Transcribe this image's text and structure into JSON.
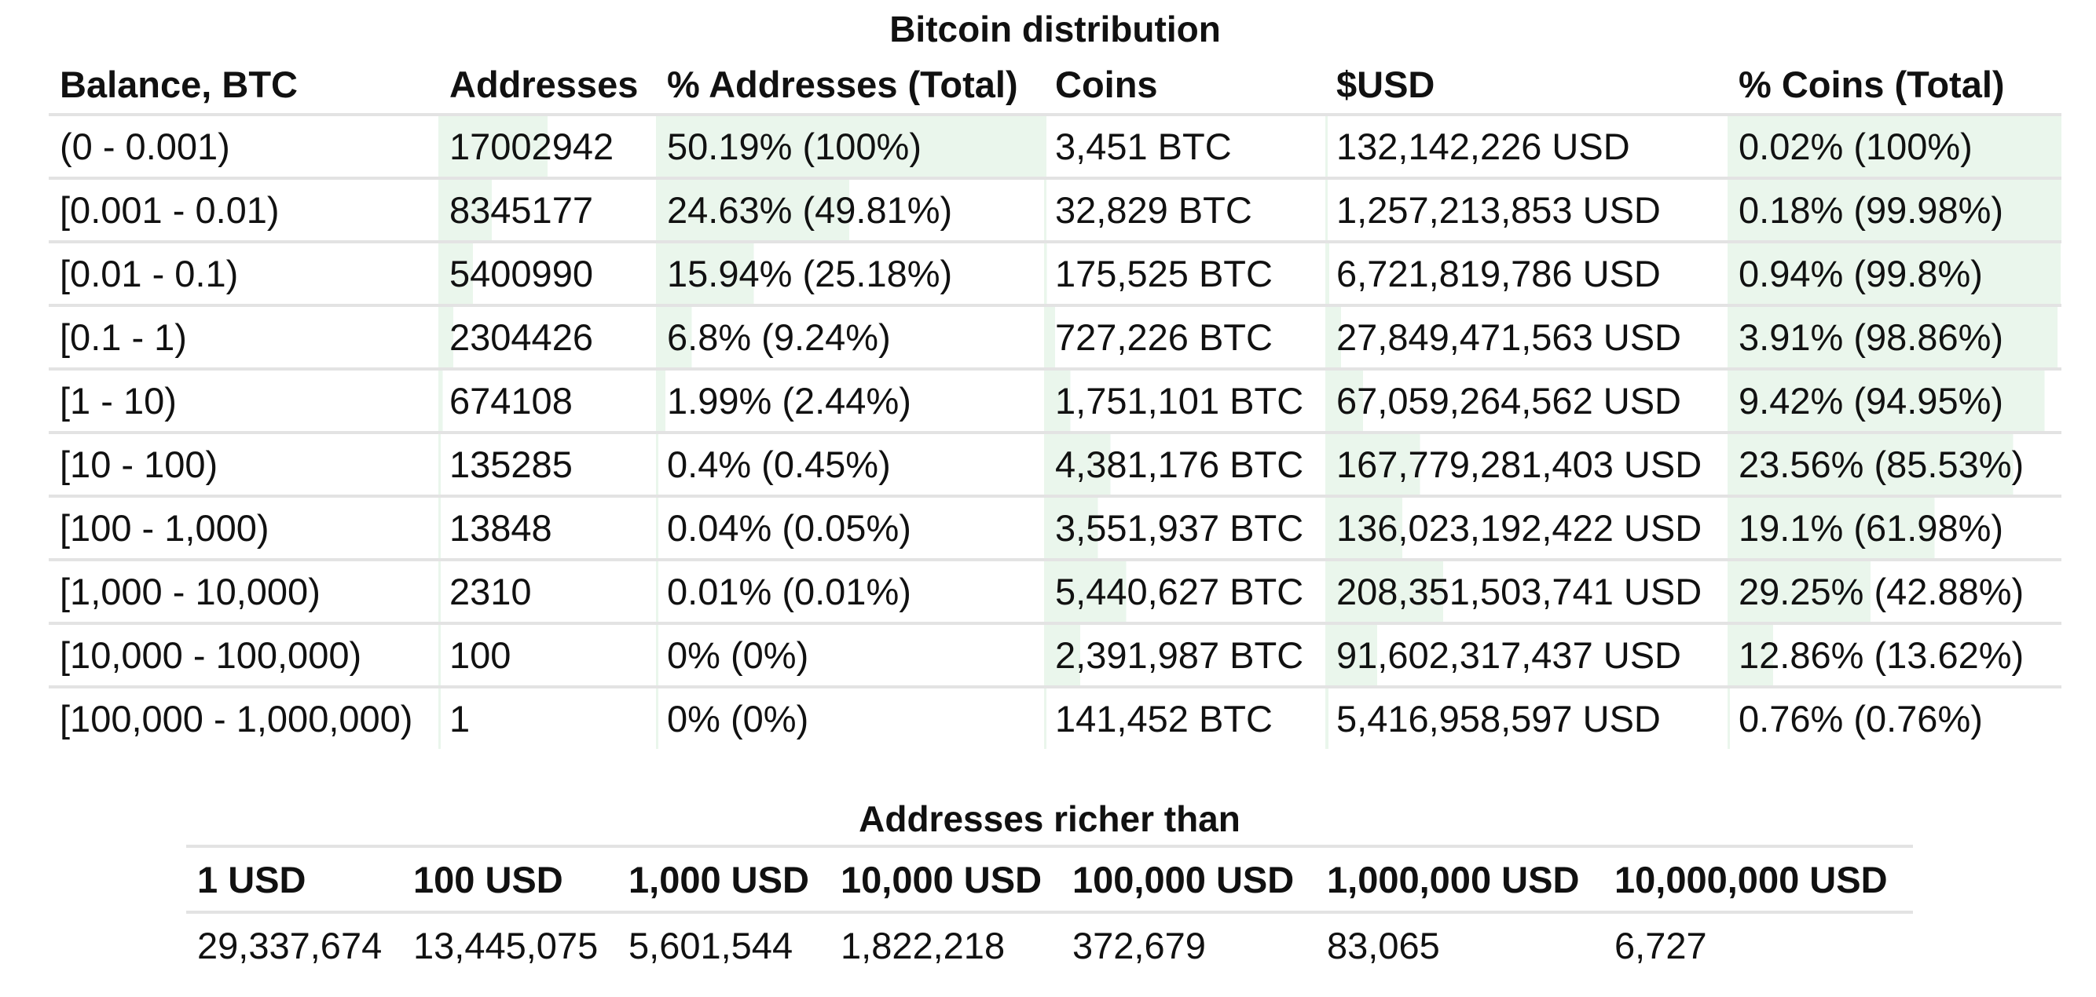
{
  "distribution": {
    "caption": "Bitcoin distribution",
    "headers": {
      "balance": "Balance, BTC",
      "addresses": "Addresses",
      "pct_addresses": "% Addresses (Total)",
      "coins": "Coins",
      "usd": "$USD",
      "pct_coins": "% Coins (Total)"
    },
    "rows": [
      {
        "balance": "(0 - 0.001)",
        "addresses": "17002942",
        "pct_addresses": "50.19% (100%)",
        "coins": "3,451 BTC",
        "usd": "132,142,226 USD",
        "pct_coins": "0.02% (100%)",
        "addresses_share": 0.5019,
        "pct_addresses_share": 1.0,
        "coins_share": 0.0002,
        "usd_share": 0.0002,
        "pct_coins_share": 1.0
      },
      {
        "balance": "[0.001 - 0.01)",
        "addresses": "8345177",
        "pct_addresses": "24.63% (49.81%)",
        "coins": "32,829 BTC",
        "usd": "1,257,213,853 USD",
        "pct_coins": "0.18% (99.98%)",
        "addresses_share": 0.2463,
        "pct_addresses_share": 0.4981,
        "coins_share": 0.0018,
        "usd_share": 0.0018,
        "pct_coins_share": 0.9998
      },
      {
        "balance": "[0.01 - 0.1)",
        "addresses": "5400990",
        "pct_addresses": "15.94% (25.18%)",
        "coins": "175,525 BTC",
        "usd": "6,721,819,786 USD",
        "pct_coins": "0.94% (99.8%)",
        "addresses_share": 0.1594,
        "pct_addresses_share": 0.2518,
        "coins_share": 0.0094,
        "usd_share": 0.0094,
        "pct_coins_share": 0.998
      },
      {
        "balance": "[0.1 - 1)",
        "addresses": "2304426",
        "pct_addresses": "6.8% (9.24%)",
        "coins": "727,226 BTC",
        "usd": "27,849,471,563 USD",
        "pct_coins": "3.91% (98.86%)",
        "addresses_share": 0.068,
        "pct_addresses_share": 0.0924,
        "coins_share": 0.0391,
        "usd_share": 0.0391,
        "pct_coins_share": 0.9886
      },
      {
        "balance": "[1 - 10)",
        "addresses": "674108",
        "pct_addresses": "1.99% (2.44%)",
        "coins": "1,751,101 BTC",
        "usd": "67,059,264,562 USD",
        "pct_coins": "9.42% (94.95%)",
        "addresses_share": 0.0199,
        "pct_addresses_share": 0.0244,
        "coins_share": 0.0942,
        "usd_share": 0.0942,
        "pct_coins_share": 0.9495
      },
      {
        "balance": "[10 - 100)",
        "addresses": "135285",
        "pct_addresses": "0.4% (0.45%)",
        "coins": "4,381,176 BTC",
        "usd": "167,779,281,403 USD",
        "pct_coins": "23.56% (85.53%)",
        "addresses_share": 0.004,
        "pct_addresses_share": 0.0045,
        "coins_share": 0.2356,
        "usd_share": 0.2356,
        "pct_coins_share": 0.8553
      },
      {
        "balance": "[100 - 1,000)",
        "addresses": "13848",
        "pct_addresses": "0.04% (0.05%)",
        "coins": "3,551,937 BTC",
        "usd": "136,023,192,422 USD",
        "pct_coins": "19.1% (61.98%)",
        "addresses_share": 0.0004,
        "pct_addresses_share": 0.0005,
        "coins_share": 0.191,
        "usd_share": 0.191,
        "pct_coins_share": 0.6198
      },
      {
        "balance": "[1,000 - 10,000)",
        "addresses": "2310",
        "pct_addresses": "0.01% (0.01%)",
        "coins": "5,440,627 BTC",
        "usd": "208,351,503,741 USD",
        "pct_coins": "29.25% (42.88%)",
        "addresses_share": 0.0001,
        "pct_addresses_share": 0.0001,
        "coins_share": 0.2925,
        "usd_share": 0.2925,
        "pct_coins_share": 0.4288
      },
      {
        "balance": "[10,000 - 100,000)",
        "addresses": "100",
        "pct_addresses": "0% (0%)",
        "coins": "2,391,987 BTC",
        "usd": "91,602,317,437 USD",
        "pct_coins": "12.86% (13.62%)",
        "addresses_share": 0.0,
        "pct_addresses_share": 0.0,
        "coins_share": 0.1286,
        "usd_share": 0.1286,
        "pct_coins_share": 0.1362
      },
      {
        "balance": "[100,000 - 1,000,000)",
        "addresses": "1",
        "pct_addresses": "0% (0%)",
        "coins": "141,452 BTC",
        "usd": "5,416,958,597 USD",
        "pct_coins": "0.76% (0.76%)",
        "addresses_share": 0.0,
        "pct_addresses_share": 0.0,
        "coins_share": 0.0076,
        "usd_share": 0.0076,
        "pct_coins_share": 0.0076
      }
    ]
  },
  "richer_than": {
    "caption": "Addresses richer than",
    "headers": [
      "1 USD",
      "100 USD",
      "1,000 USD",
      "10,000 USD",
      "100,000 USD",
      "1,000,000 USD",
      "10,000,000 USD"
    ],
    "values": [
      "29,337,674",
      "13,445,075",
      "5,601,544",
      "1,822,218",
      "372,679",
      "83,065",
      "6,727"
    ]
  },
  "colors": {
    "bar_fill": "#eaf6ec",
    "row_divider": "#e3e3e3",
    "text": "#111111"
  }
}
